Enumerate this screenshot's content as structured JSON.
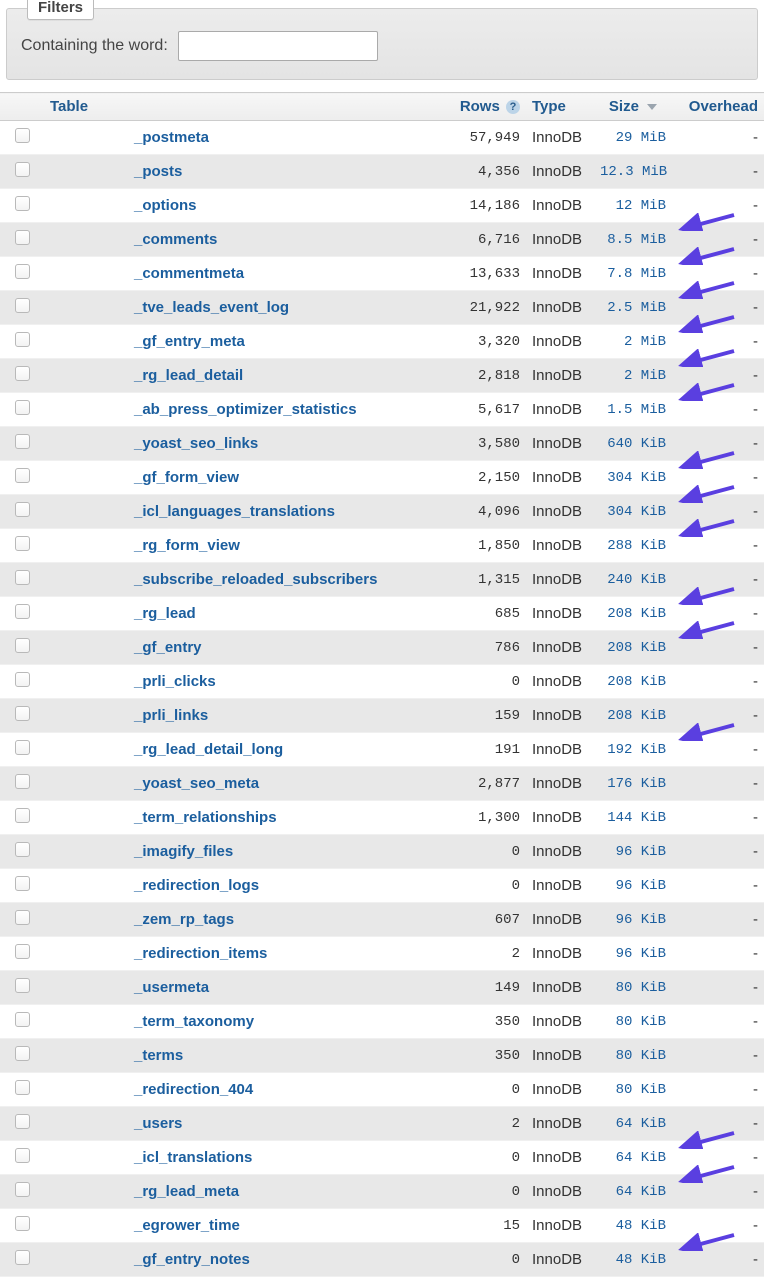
{
  "filters": {
    "legend": "Filters",
    "label_containing": "Containing the word:",
    "input_value": ""
  },
  "columns": {
    "table": "Table",
    "rows": "Rows",
    "type": "Type",
    "size": "Size",
    "overhead": "Overhead"
  },
  "colors": {
    "link": "#1b5e9e",
    "row_even_bg": "#e8e8e8",
    "row_odd_bg": "#ffffff",
    "arrow": "#5a3fe0"
  },
  "tables": [
    {
      "name": "_postmeta",
      "rows": "57,949",
      "type": "InnoDB",
      "size": "29 MiB",
      "overhead": "-"
    },
    {
      "name": "_posts",
      "rows": "4,356",
      "type": "InnoDB",
      "size": "12.3 MiB",
      "overhead": "-"
    },
    {
      "name": "_options",
      "rows": "14,186",
      "type": "InnoDB",
      "size": "12 MiB",
      "overhead": "-"
    },
    {
      "name": "_comments",
      "rows": "6,716",
      "type": "InnoDB",
      "size": "8.5 MiB",
      "overhead": "-",
      "arrow": true
    },
    {
      "name": "_commentmeta",
      "rows": "13,633",
      "type": "InnoDB",
      "size": "7.8 MiB",
      "overhead": "-",
      "arrow": true
    },
    {
      "name": "_tve_leads_event_log",
      "rows": "21,922",
      "type": "InnoDB",
      "size": "2.5 MiB",
      "overhead": "-",
      "arrow": true
    },
    {
      "name": "_gf_entry_meta",
      "rows": "3,320",
      "type": "InnoDB",
      "size": "2 MiB",
      "overhead": "-",
      "arrow": true
    },
    {
      "name": "_rg_lead_detail",
      "rows": "2,818",
      "type": "InnoDB",
      "size": "2 MiB",
      "overhead": "-",
      "arrow": true
    },
    {
      "name": "_ab_press_optimizer_statistics",
      "rows": "5,617",
      "type": "InnoDB",
      "size": "1.5 MiB",
      "overhead": "-",
      "arrow": true
    },
    {
      "name": "_yoast_seo_links",
      "rows": "3,580",
      "type": "InnoDB",
      "size": "640 KiB",
      "overhead": "-"
    },
    {
      "name": "_gf_form_view",
      "rows": "2,150",
      "type": "InnoDB",
      "size": "304 KiB",
      "overhead": "-",
      "arrow": true
    },
    {
      "name": "_icl_languages_translations",
      "rows": "4,096",
      "type": "InnoDB",
      "size": "304 KiB",
      "overhead": "-",
      "arrow": true
    },
    {
      "name": "_rg_form_view",
      "rows": "1,850",
      "type": "InnoDB",
      "size": "288 KiB",
      "overhead": "-",
      "arrow": true
    },
    {
      "name": "_subscribe_reloaded_subscribers",
      "rows": "1,315",
      "type": "InnoDB",
      "size": "240 KiB",
      "overhead": "-"
    },
    {
      "name": "_rg_lead",
      "rows": "685",
      "type": "InnoDB",
      "size": "208 KiB",
      "overhead": "-",
      "arrow": true
    },
    {
      "name": "_gf_entry",
      "rows": "786",
      "type": "InnoDB",
      "size": "208 KiB",
      "overhead": "-",
      "arrow": true
    },
    {
      "name": "_prli_clicks",
      "rows": "0",
      "type": "InnoDB",
      "size": "208 KiB",
      "overhead": "-"
    },
    {
      "name": "_prli_links",
      "rows": "159",
      "type": "InnoDB",
      "size": "208 KiB",
      "overhead": "-"
    },
    {
      "name": "_rg_lead_detail_long",
      "rows": "191",
      "type": "InnoDB",
      "size": "192 KiB",
      "overhead": "-",
      "arrow": true
    },
    {
      "name": "_yoast_seo_meta",
      "rows": "2,877",
      "type": "InnoDB",
      "size": "176 KiB",
      "overhead": "-"
    },
    {
      "name": "_term_relationships",
      "rows": "1,300",
      "type": "InnoDB",
      "size": "144 KiB",
      "overhead": "-"
    },
    {
      "name": "_imagify_files",
      "rows": "0",
      "type": "InnoDB",
      "size": "96 KiB",
      "overhead": "-"
    },
    {
      "name": "_redirection_logs",
      "rows": "0",
      "type": "InnoDB",
      "size": "96 KiB",
      "overhead": "-"
    },
    {
      "name": "_zem_rp_tags",
      "rows": "607",
      "type": "InnoDB",
      "size": "96 KiB",
      "overhead": "-"
    },
    {
      "name": "_redirection_items",
      "rows": "2",
      "type": "InnoDB",
      "size": "96 KiB",
      "overhead": "-"
    },
    {
      "name": "_usermeta",
      "rows": "149",
      "type": "InnoDB",
      "size": "80 KiB",
      "overhead": "-"
    },
    {
      "name": "_term_taxonomy",
      "rows": "350",
      "type": "InnoDB",
      "size": "80 KiB",
      "overhead": "-"
    },
    {
      "name": "_terms",
      "rows": "350",
      "type": "InnoDB",
      "size": "80 KiB",
      "overhead": "-"
    },
    {
      "name": "_redirection_404",
      "rows": "0",
      "type": "InnoDB",
      "size": "80 KiB",
      "overhead": "-"
    },
    {
      "name": "_users",
      "rows": "2",
      "type": "InnoDB",
      "size": "64 KiB",
      "overhead": "-"
    },
    {
      "name": "_icl_translations",
      "rows": "0",
      "type": "InnoDB",
      "size": "64 KiB",
      "overhead": "-",
      "arrow": true
    },
    {
      "name": "_rg_lead_meta",
      "rows": "0",
      "type": "InnoDB",
      "size": "64 KiB",
      "overhead": "-",
      "arrow": true
    },
    {
      "name": "_egrower_time",
      "rows": "15",
      "type": "InnoDB",
      "size": "48 KiB",
      "overhead": "-"
    },
    {
      "name": "_gf_entry_notes",
      "rows": "0",
      "type": "InnoDB",
      "size": "48 KiB",
      "overhead": "-",
      "arrow": true
    }
  ]
}
